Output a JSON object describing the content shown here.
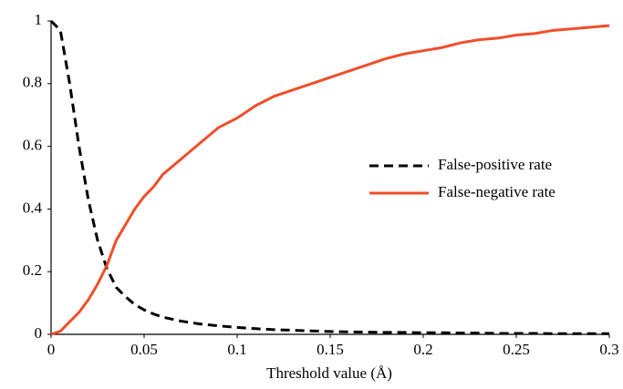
{
  "chart_data": {
    "type": "line",
    "xlabel": "Threshold value (Å)",
    "x": [
      0,
      0.005,
      0.01,
      0.015,
      0.02,
      0.025,
      0.03,
      0.035,
      0.04,
      0.045,
      0.05,
      0.055,
      0.06,
      0.07,
      0.08,
      0.09,
      0.1,
      0.11,
      0.12,
      0.13,
      0.14,
      0.15,
      0.16,
      0.17,
      0.18,
      0.19,
      0.2,
      0.21,
      0.22,
      0.23,
      0.24,
      0.25,
      0.26,
      0.27,
      0.28,
      0.29,
      0.3
    ],
    "series": [
      {
        "name": "False-positive rate",
        "color": "#000000",
        "style": "dashed",
        "values": [
          1,
          0.97,
          0.8,
          0.6,
          0.43,
          0.3,
          0.21,
          0.15,
          0.12,
          0.095,
          0.078,
          0.065,
          0.055,
          0.042,
          0.033,
          0.027,
          0.022,
          0.018,
          0.015,
          0.013,
          0.011,
          0.009,
          0.008,
          0.007,
          0.006,
          0.006,
          0.005,
          0.005,
          0.004,
          0.004,
          0.003,
          0.003,
          0.003,
          0.002,
          0.002,
          0.002,
          0.002
        ]
      },
      {
        "name": "False-negative rate",
        "color": "#f04e2a",
        "style": "solid",
        "values": [
          0,
          0.01,
          0.04,
          0.07,
          0.11,
          0.16,
          0.22,
          0.3,
          0.35,
          0.4,
          0.44,
          0.47,
          0.51,
          0.56,
          0.61,
          0.66,
          0.69,
          0.73,
          0.76,
          0.78,
          0.8,
          0.82,
          0.84,
          0.86,
          0.88,
          0.895,
          0.905,
          0.915,
          0.93,
          0.94,
          0.945,
          0.955,
          0.96,
          0.97,
          0.975,
          0.98,
          0.985
        ]
      }
    ],
    "xlim": [
      0,
      0.3
    ],
    "xticks": [
      0,
      0.05,
      0.1,
      0.15,
      0.2,
      0.25,
      0.3
    ],
    "ylim": [
      0,
      1
    ],
    "yticks": [
      0,
      0.2,
      0.4,
      0.6,
      0.8,
      1
    ],
    "grid": false,
    "legend": "center right"
  }
}
